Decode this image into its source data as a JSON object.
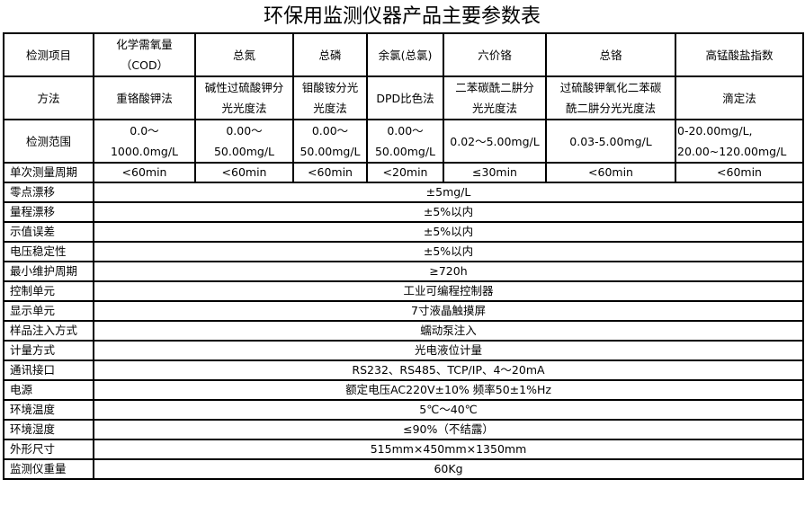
{
  "title": "环保用监测仪器产品主要参数表",
  "header": {
    "label": "检测项目",
    "items": [
      [
        "化学需氧量",
        "（COD）"
      ],
      [
        "总氮"
      ],
      [
        "总磷"
      ],
      [
        "余氯(总氯)"
      ],
      [
        "六价铬"
      ],
      [
        "总铬"
      ],
      [
        "高锰酸盐指数"
      ]
    ]
  },
  "method": {
    "label": "方法",
    "items": [
      [
        "重铬酸钾法"
      ],
      [
        "碱性过硫酸钾分",
        "光光度法"
      ],
      [
        "钼酸铵分光",
        "光度法"
      ],
      [
        "DPD比色法"
      ],
      [
        "二苯碳酰二肼分",
        "光光度法"
      ],
      [
        "过硫酸钾氧化二苯碳",
        "酰二肼分光光度法"
      ],
      [
        "滴定法"
      ]
    ]
  },
  "range": {
    "label": "检测范围",
    "items": [
      [
        "0.0～",
        "1000.0mg/L"
      ],
      [
        "0.00～",
        "50.00mg/L"
      ],
      [
        "0.00～",
        "50.00mg/L"
      ],
      [
        "0.00～",
        "50.00mg/L"
      ],
      [
        "0.02～5.00mg/L"
      ],
      [
        "0.03-5.00mg/L"
      ],
      [
        "0-20.00mg/L,",
        "20.00~120.00mg/L"
      ]
    ]
  },
  "cycle": {
    "label": "单次测量周期",
    "items": [
      "<60min",
      "<60min",
      "<60min",
      "<20min",
      "≤30min",
      "<60min",
      "<60min"
    ]
  },
  "rows": [
    {
      "label": "零点漂移",
      "value": "±5mg/L"
    },
    {
      "label": "量程漂移",
      "value": "±5%以内"
    },
    {
      "label": "示值误差",
      "value": "±5%以内"
    },
    {
      "label": "电压稳定性",
      "value": "±5%以内"
    },
    {
      "label": "最小维护周期",
      "value": "≥720h"
    },
    {
      "label": "控制单元",
      "value": "工业可编程控制器"
    },
    {
      "label": "显示单元",
      "value": "7寸液晶触摸屏"
    },
    {
      "label": "样品注入方式",
      "value": "蠕动泵注入"
    },
    {
      "label": "计量方式",
      "value": "光电液位计量"
    },
    {
      "label": "通讯接口",
      "value": "RS232、RS485、TCP/IP、4～20mA"
    },
    {
      "label": "电源",
      "value": "额定电压AC220V±10%  频率50±1%Hz"
    },
    {
      "label": "环境温度",
      "value": "5℃～40℃"
    },
    {
      "label": "环境湿度",
      "value": "≤90%（不结露）"
    },
    {
      "label": "外形尺寸",
      "value": "515mm×450mm×1350mm"
    },
    {
      "label": "监测仪重量",
      "value": "60Kg"
    }
  ]
}
